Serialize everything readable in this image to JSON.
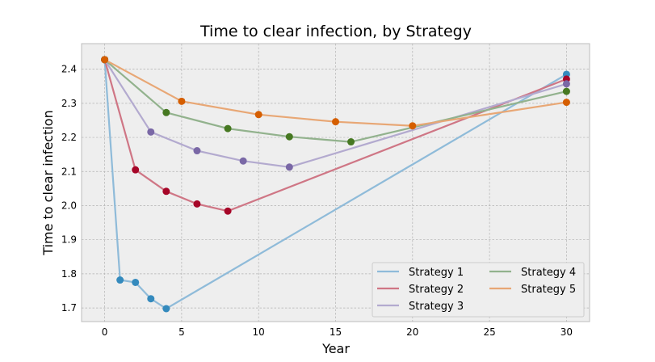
{
  "chart_data": {
    "type": "line",
    "title": "Time to clear infection, by Strategy",
    "xlabel": "Year",
    "ylabel": "Time to clear infection",
    "xlim": [
      -1.5,
      31.5
    ],
    "ylim": [
      1.66,
      2.475
    ],
    "xticks": [
      0,
      5,
      10,
      15,
      20,
      25,
      30
    ],
    "yticks": [
      1.7,
      1.8,
      1.9,
      2.0,
      2.1,
      2.2,
      2.3,
      2.4
    ],
    "grid": true,
    "legend_position": "lower-right",
    "series": [
      {
        "name": "Strategy 1",
        "line_color": "#8fbbd9",
        "marker_color": "#348abd",
        "x": [
          0,
          1,
          2,
          3,
          4,
          30
        ],
        "y": [
          2.428,
          1.782,
          1.775,
          1.727,
          1.698,
          2.385
        ]
      },
      {
        "name": "Strategy 2",
        "line_color": "#cf7685",
        "marker_color": "#a60628",
        "x": [
          0,
          2,
          4,
          6,
          8,
          30
        ],
        "y": [
          2.428,
          2.105,
          2.042,
          2.005,
          1.984,
          2.371
        ]
      },
      {
        "name": "Strategy 3",
        "line_color": "#b3aacf",
        "marker_color": "#7a68a6",
        "x": [
          0,
          3,
          6,
          9,
          12,
          30
        ],
        "y": [
          2.428,
          2.216,
          2.161,
          2.131,
          2.113,
          2.357
        ]
      },
      {
        "name": "Strategy 4",
        "line_color": "#92b28d",
        "marker_color": "#467821",
        "x": [
          0,
          4,
          8,
          12,
          16,
          30
        ],
        "y": [
          2.428,
          2.273,
          2.226,
          2.202,
          2.187,
          2.335
        ]
      },
      {
        "name": "Strategy 5",
        "line_color": "#e8a775",
        "marker_color": "#d55e00",
        "x": [
          0,
          5,
          10,
          15,
          20,
          30
        ],
        "y": [
          2.428,
          2.306,
          2.267,
          2.246,
          2.234,
          2.303
        ]
      }
    ]
  }
}
